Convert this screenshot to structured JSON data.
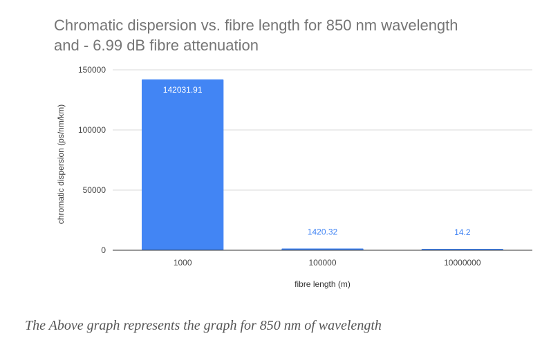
{
  "chart_data": {
    "type": "bar",
    "title_lines": [
      "Chromatic dispersion  vs. fibre length for 850 nm wavelength",
      "and - 6.99 dB fibre attenuation"
    ],
    "categories": [
      "1000",
      "100000",
      "10000000"
    ],
    "values": [
      142031.91,
      1420.32,
      14.2
    ],
    "data_labels": [
      "142031.91",
      "1420.32",
      "14.2"
    ],
    "xlabel": "fibre length (m)",
    "ylabel": "chromatic dispersion (ps/nm/km)",
    "ylim": [
      0,
      150000
    ],
    "yticks": [
      0,
      50000,
      100000,
      150000
    ],
    "ytick_labels": [
      "0",
      "50000",
      "100000",
      "150000"
    ],
    "grid": true,
    "legend": "none",
    "colors": {
      "bar": "#4285f4",
      "label_inside": "#ffffff",
      "label_outside": "#4285f4",
      "grid": "#d9d9d9",
      "baseline": "#333333"
    }
  },
  "caption": "The Above graph represents the graph for 850 nm of wavelength"
}
